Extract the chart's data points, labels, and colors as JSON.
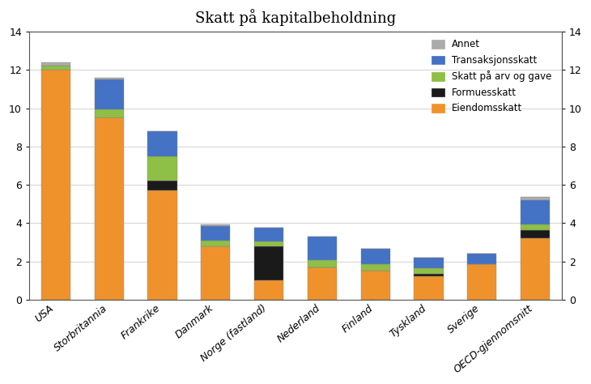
{
  "title": "Skatt på kapitalbeholdning",
  "categories": [
    "USA",
    "Storbritannia",
    "Frankrike",
    "Danmark",
    "Norge (fastland)",
    "Nederland",
    "Finland",
    "Tyskland",
    "Sverige",
    "OECD-gjennomsnitt"
  ],
  "series": {
    "Eiendomsskatt": [
      12.0,
      9.5,
      5.7,
      2.8,
      1.0,
      1.7,
      1.5,
      1.2,
      1.85,
      3.2
    ],
    "Formuesskatt": [
      0.0,
      0.0,
      0.5,
      0.0,
      1.8,
      0.0,
      0.0,
      0.15,
      0.0,
      0.45
    ],
    "Skatt på arv og gave": [
      0.25,
      0.45,
      1.3,
      0.3,
      0.25,
      0.35,
      0.35,
      0.3,
      0.0,
      0.3
    ],
    "Transaksjonsskatt": [
      0.0,
      1.55,
      1.3,
      0.75,
      0.7,
      1.25,
      0.8,
      0.55,
      0.55,
      1.25
    ],
    "Annet": [
      0.15,
      0.1,
      0.0,
      0.1,
      0.0,
      0.0,
      0.0,
      0.0,
      0.0,
      0.15
    ]
  },
  "colors": {
    "Eiendomsskatt": "#F0922B",
    "Formuesskatt": "#1A1A1A",
    "Skatt på arv og gave": "#8DC044",
    "Transaksjonsskatt": "#4472C4",
    "Annet": "#ABABAB"
  },
  "ylim": [
    0,
    14
  ],
  "yticks": [
    0,
    2,
    4,
    6,
    8,
    10,
    12,
    14
  ],
  "legend_order": [
    "Annet",
    "Transaksjonsskatt",
    "Skatt på arv og gave",
    "Formuesskatt",
    "Eiendomsskatt"
  ],
  "bar_width": 0.55,
  "figsize": [
    7.3,
    4.74
  ],
  "dpi": 100
}
